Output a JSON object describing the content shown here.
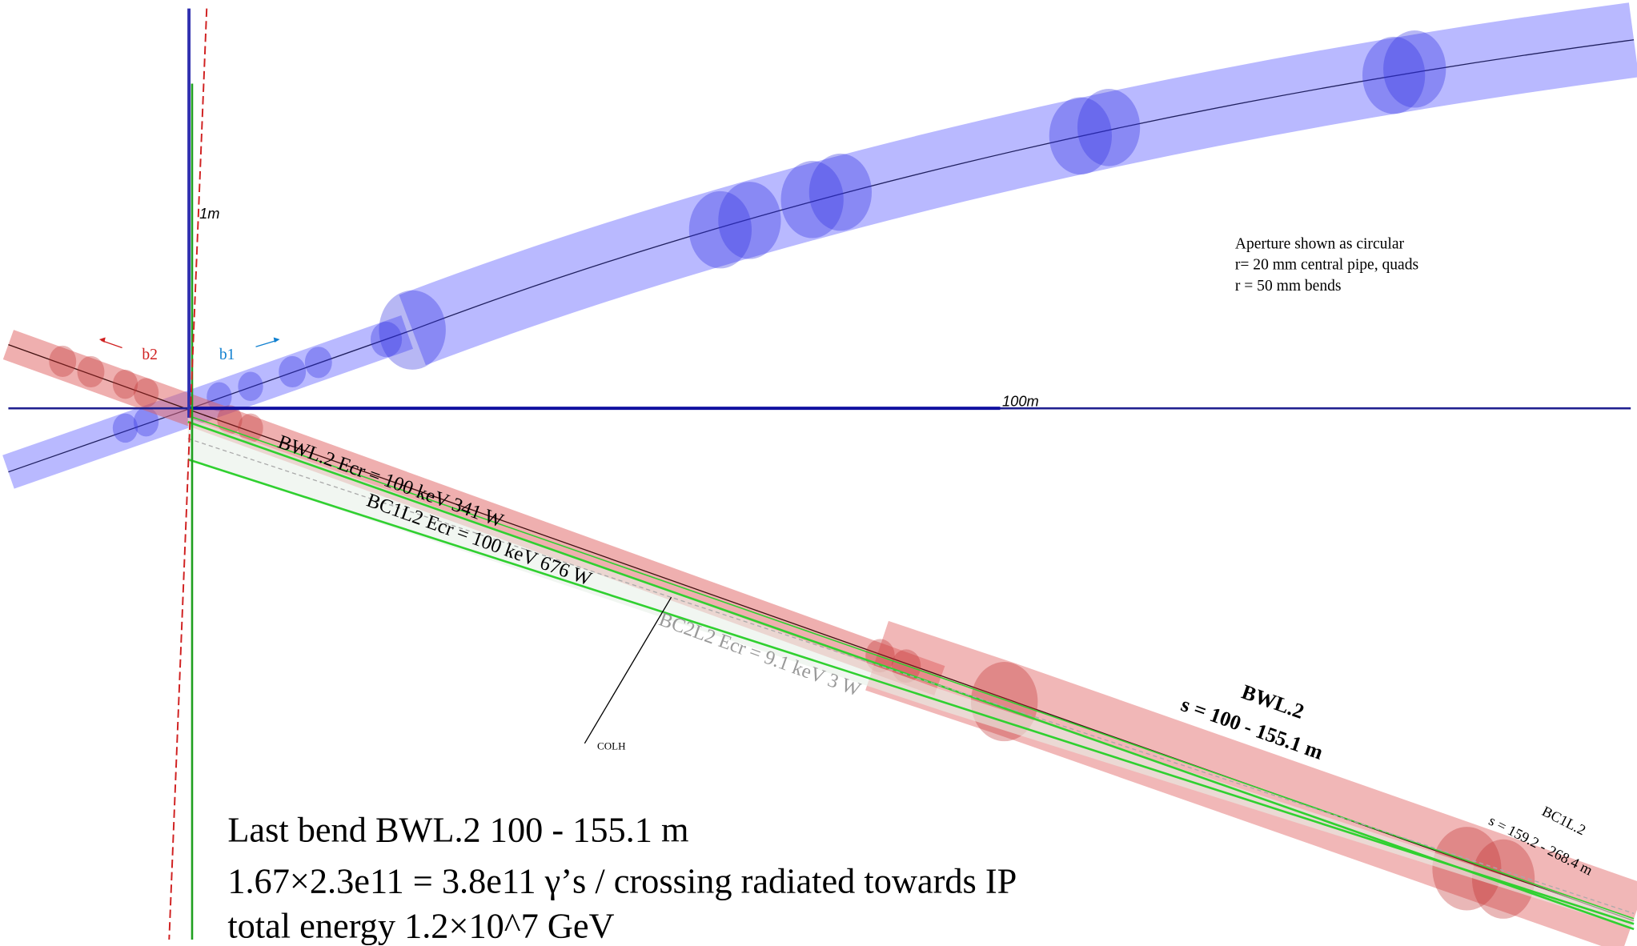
{
  "axes": {
    "vertical_scale": "1m",
    "horizontal_scale": "100m"
  },
  "beams": {
    "b2": "b2",
    "b1": "b1"
  },
  "aperture_note": [
    "Aperture shown as circular",
    "r= 20 mm  central pipe, quads",
    "r = 50 mm bends"
  ],
  "fans": {
    "bwl": "BWL.2  Ecr = 100 keV  341 W",
    "bc1": "BC1L2  Ecr = 100 keV  676 W",
    "bc2": "BC2L2  Ecr = 9.1 keV  3 W",
    "colh": "COLH"
  },
  "magnets": {
    "bwl_name": "BWL.2",
    "bwl_range": "s =  100 - 155.1 m",
    "bc1_name": "BC1L.2",
    "bc1_range": "s =  159.2 - 268.4 m"
  },
  "caption": [
    "Last bend  BWL.2  100 - 155.1 m",
    "1.67×2.3e11 = 3.8e11 γ’s / crossing radiated towards IP",
    "total energy 1.2×10^7 GeV"
  ]
}
